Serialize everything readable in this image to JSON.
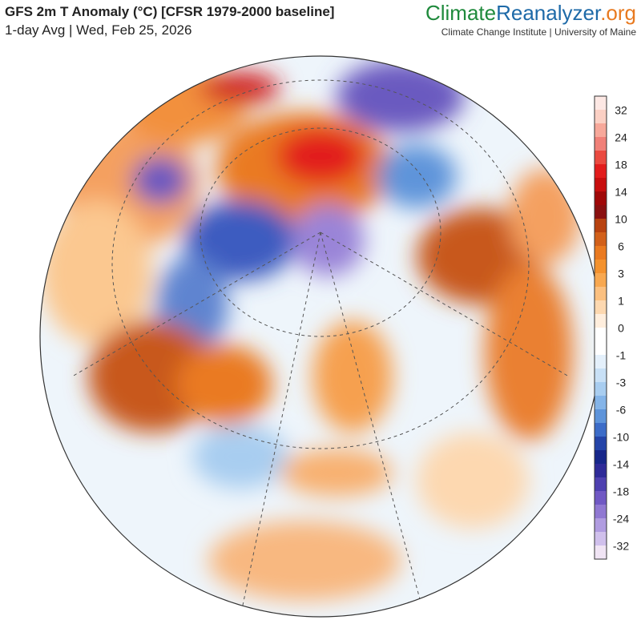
{
  "header": {
    "title": "GFS 2m T Anomaly (°C) [CFSR 1979-2000 baseline]",
    "subtitle": "1-day Avg | Wed, Feb 25, 2026"
  },
  "brand": {
    "name_part1": "Climate",
    "name_part2": "Reanalyzer",
    "name_part3": ".org",
    "institute": "Climate Change Institute | University of Maine"
  },
  "legend": {
    "labels": [
      32,
      24,
      18,
      14,
      10,
      6,
      3,
      1,
      0,
      -1,
      -3,
      -6,
      -10,
      -14,
      -18,
      -24,
      -32
    ],
    "colors": [
      "#fde8e4",
      "#fbd0c4",
      "#f7a89a",
      "#f08078",
      "#ea4a40",
      "#e21c1c",
      "#c80e0e",
      "#a00808",
      "#8a1010",
      "#b84210",
      "#d2601a",
      "#ea7a20",
      "#f4922e",
      "#f8a850",
      "#fbc080",
      "#fdd8b0",
      "#ffeedd",
      "#ffffff",
      "#ffffff",
      "#e4f0fb",
      "#c8e0f6",
      "#a8cdf0",
      "#84b4e8",
      "#5e94da",
      "#3c6cc8",
      "#2444a8",
      "#16268a",
      "#2e2a98",
      "#4e40b0",
      "#7058c4",
      "#9078d2",
      "#b09ce0",
      "#d0c0ec",
      "#f0e4f4"
    ]
  }
}
